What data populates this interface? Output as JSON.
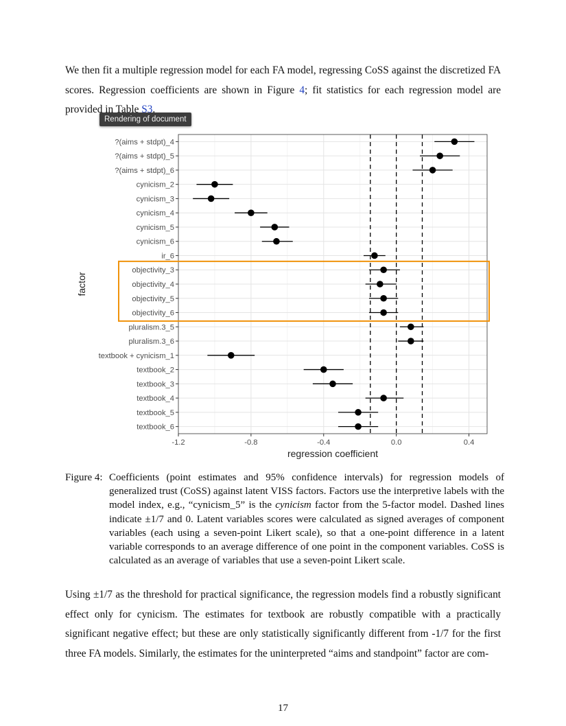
{
  "tooltip": "Rendering of document",
  "para_top": {
    "t1": "We then fit a multiple regression model for each FA model, regressing CoSS against the discretized FA scores. Regression coefficients are shown in Figure ",
    "ref1": "4",
    "t2": "; fit statistics for each regression model are provided in Table ",
    "ref2": "S3",
    "t3": "."
  },
  "chart_data": {
    "type": "scatter",
    "xlabel": "regression coefficient",
    "ylabel": "factor",
    "xlim": [
      -1.2,
      0.5
    ],
    "xticks": [
      -1.2,
      -0.8,
      -0.4,
      0.0,
      0.4
    ],
    "xtick_labels": [
      "-1.2",
      "-0.8",
      "-0.4",
      "0.0",
      "0.4"
    ],
    "reference_lines": [
      -0.143,
      0.0,
      0.143
    ],
    "grid": true,
    "points": [
      {
        "label": "?(aims + stdpt)_4",
        "est": 0.32,
        "lo": 0.21,
        "hi": 0.43
      },
      {
        "label": "?(aims + stdpt)_5",
        "est": 0.24,
        "lo": 0.13,
        "hi": 0.35
      },
      {
        "label": "?(aims + stdpt)_6",
        "est": 0.2,
        "lo": 0.09,
        "hi": 0.31
      },
      {
        "label": "cynicism_2",
        "est": -1.0,
        "lo": -1.1,
        "hi": -0.9
      },
      {
        "label": "cynicism_3",
        "est": -1.02,
        "lo": -1.12,
        "hi": -0.92
      },
      {
        "label": "cynicism_4",
        "est": -0.8,
        "lo": -0.89,
        "hi": -0.71
      },
      {
        "label": "cynicism_5",
        "est": -0.67,
        "lo": -0.75,
        "hi": -0.59
      },
      {
        "label": "cynicism_6",
        "est": -0.66,
        "lo": -0.74,
        "hi": -0.57
      },
      {
        "label": "ir_6",
        "est": -0.12,
        "lo": -0.18,
        "hi": -0.06
      },
      {
        "label": "objectivity_3",
        "est": -0.07,
        "lo": -0.15,
        "hi": 0.02
      },
      {
        "label": "objectivity_4",
        "est": -0.09,
        "lo": -0.17,
        "hi": 0.0
      },
      {
        "label": "objectivity_5",
        "est": -0.07,
        "lo": -0.15,
        "hi": 0.01
      },
      {
        "label": "objectivity_6",
        "est": -0.07,
        "lo": -0.15,
        "hi": 0.01
      },
      {
        "label": "pluralism.3_5",
        "est": 0.08,
        "lo": 0.02,
        "hi": 0.15
      },
      {
        "label": "pluralism.3_6",
        "est": 0.08,
        "lo": 0.01,
        "hi": 0.15
      },
      {
        "label": "textbook + cynicism_1",
        "est": -0.91,
        "lo": -1.04,
        "hi": -0.78
      },
      {
        "label": "textbook_2",
        "est": -0.4,
        "lo": -0.51,
        "hi": -0.29
      },
      {
        "label": "textbook_3",
        "est": -0.35,
        "lo": -0.46,
        "hi": -0.24
      },
      {
        "label": "textbook_4",
        "est": -0.07,
        "lo": -0.17,
        "hi": 0.04
      },
      {
        "label": "textbook_5",
        "est": -0.21,
        "lo": -0.32,
        "hi": -0.1
      },
      {
        "label": "textbook_6",
        "est": -0.21,
        "lo": -0.32,
        "hi": -0.1
      }
    ],
    "highlight": {
      "first": "objectivity_3",
      "last": "objectivity_6",
      "color": "#f0920a"
    }
  },
  "caption": {
    "label": "Figure 4:",
    "t1": "Coefficients (point estimates and 95% confidence intervals) for regression models of generalized trust (CoSS) against latent VISS factors. Factors use the interpretive labels with the model index, e.g., “cynicism_5” is the ",
    "em": "cynicism",
    "t2": " factor from the 5-factor model. Dashed lines indicate ±1/7 and 0. Latent variables scores were calculated as signed averages of component variables (each using a seven-point Likert scale), so that a one-point difference in a latent variable corresponds to an average difference of one point in the component variables. CoSS is calculated as an average of variables that use a seven-point Likert scale."
  },
  "para_bottom": "Using ±1/7 as the threshold for practical significance, the regression models find a robustly significant effect only for cynicism. The estimates for textbook are robustly compatible with a practically significant negative effect; but these are only statistically significantly different from -1/7 for the first three FA models. Similarly, the estimates for the uninterpreted “aims and standpoint” factor are com-",
  "page_number": "17"
}
